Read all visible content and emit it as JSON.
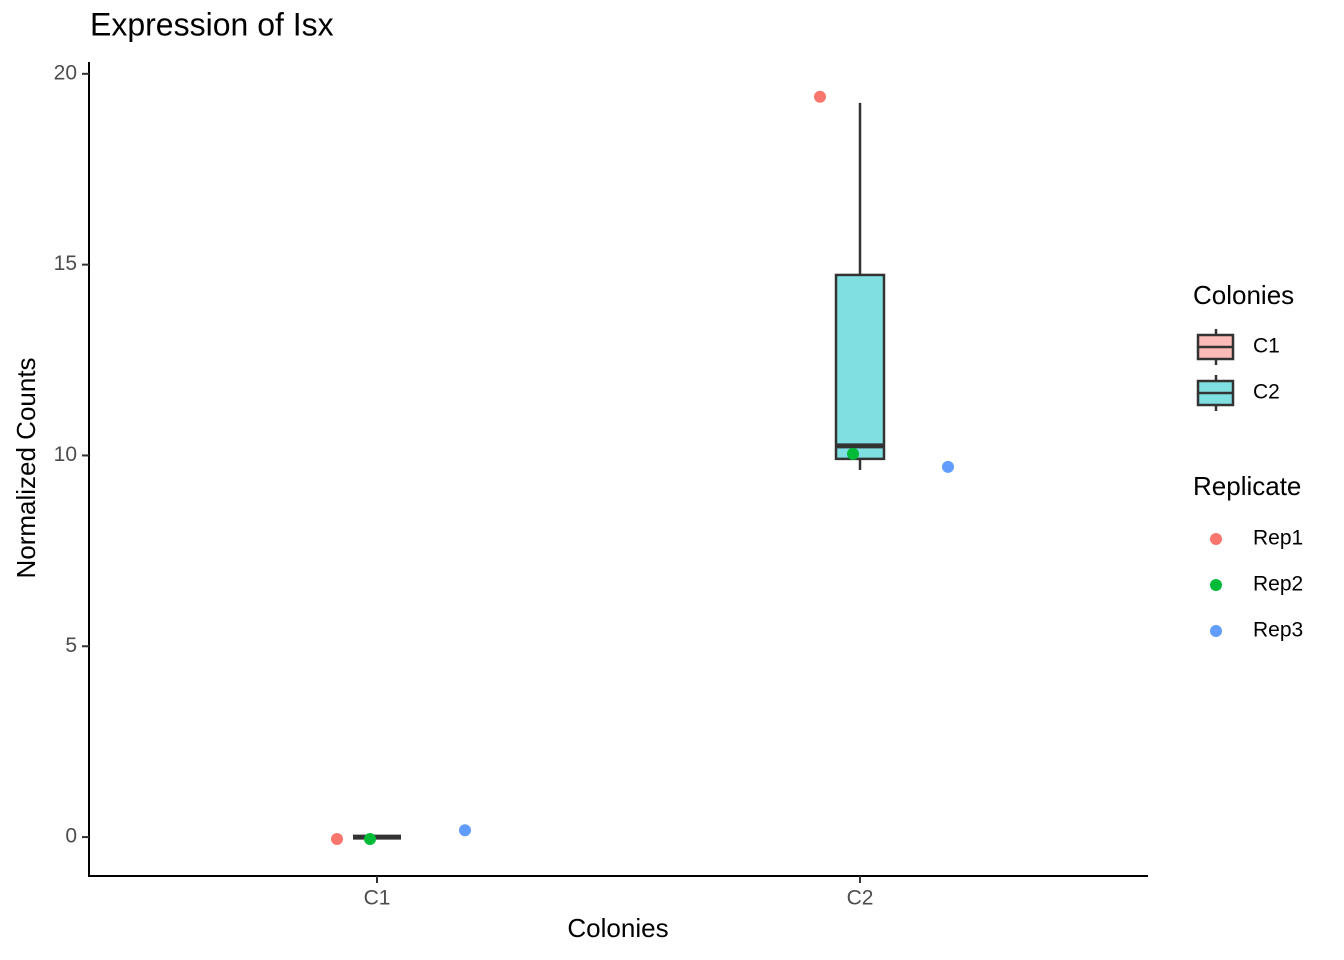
{
  "chart_data": {
    "type": "box",
    "title": "Expression of Isx",
    "x_label": "Colonies",
    "y_label": "Normalized Counts",
    "categories": [
      "C1",
      "C2"
    ],
    "boxes": [
      {
        "min": 0,
        "q1": 0,
        "median": 0,
        "q3": 0,
        "max": 0
      },
      {
        "min": 9.62,
        "q1": 9.91,
        "median": 10.25,
        "q3": 14.73,
        "max": 19.24
      }
    ],
    "box_colors": [
      "#fbbbb6",
      "#80dfe1"
    ],
    "legend_box_title": "Colonies",
    "legend_point_title": "Replicate",
    "series": [
      {
        "name": "Rep1",
        "color": "#f8766d",
        "values": [
          -0.05,
          19.4
        ]
      },
      {
        "name": "Rep2",
        "color": "#00ba38",
        "values": [
          -0.05,
          10.04
        ]
      },
      {
        "name": "Rep3",
        "color": "#619cff",
        "values": [
          0.18,
          9.7
        ]
      }
    ],
    "ylim": [
      -1.02,
      20.31
    ],
    "yticks": [
      0,
      5,
      10,
      15,
      20
    ]
  }
}
